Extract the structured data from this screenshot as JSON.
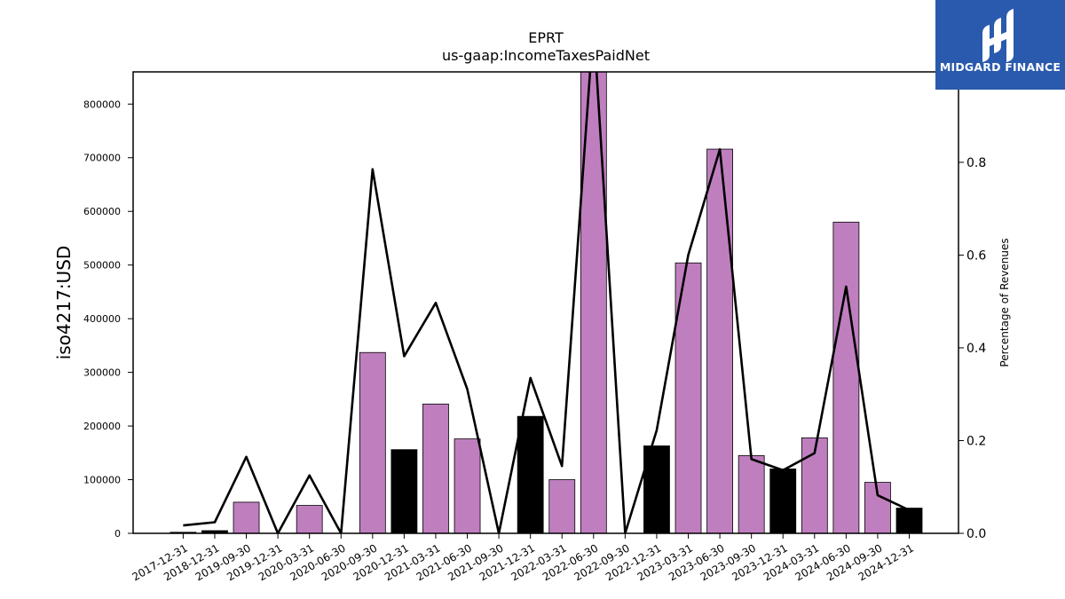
{
  "logo": {
    "text": "MIDGARD FINANCE",
    "bg": "#2a5aae"
  },
  "chart_data": {
    "type": "bar",
    "title": "EPRT",
    "subtitle": "us-gaap:IncomeTaxesPaidNet",
    "ylabel": "iso4217:USD",
    "y2label": "Percentage of Revenues",
    "ylim": [
      0,
      860000
    ],
    "y2lim": [
      0,
      0.995
    ],
    "yticks": [
      0,
      100000,
      200000,
      300000,
      400000,
      500000,
      600000,
      700000,
      800000
    ],
    "y2ticks": [
      0.0,
      0.2,
      0.4,
      0.6,
      0.8
    ],
    "categories": [
      "2017-12-31",
      "2018-12-31",
      "2019-09-30",
      "2019-12-31",
      "2020-03-31",
      "2020-06-30",
      "2020-09-30",
      "2020-12-31",
      "2021-03-31",
      "2021-06-30",
      "2021-09-30",
      "2021-12-31",
      "2022-03-31",
      "2022-06-30",
      "2022-09-30",
      "2022-12-31",
      "2023-03-31",
      "2023-06-30",
      "2023-09-30",
      "2023-12-31",
      "2024-03-31",
      "2024-06-30",
      "2024-09-30",
      "2024-12-31"
    ],
    "series": [
      {
        "type": "bar",
        "values": [
          2000,
          5000,
          58000,
          0,
          52000,
          0,
          337000,
          156000,
          241000,
          176000,
          0,
          218000,
          100000,
          870000,
          0,
          163000,
          504000,
          716000,
          145000,
          120000,
          178000,
          580000,
          95000,
          47000
        ],
        "colors": [
          "#000000",
          "#000000",
          "#bf7fbf",
          "#bf7fbf",
          "#bf7fbf",
          "#bf7fbf",
          "#bf7fbf",
          "#000000",
          "#bf7fbf",
          "#bf7fbf",
          "#bf7fbf",
          "#000000",
          "#bf7fbf",
          "#bf7fbf",
          "#bf7fbf",
          "#000000",
          "#bf7fbf",
          "#bf7fbf",
          "#bf7fbf",
          "#000000",
          "#bf7fbf",
          "#bf7fbf",
          "#bf7fbf",
          "#000000"
        ]
      },
      {
        "type": "line",
        "axis": "right",
        "color": "#000000",
        "values": [
          0.017,
          0.024,
          0.165,
          0.0,
          0.125,
          0.0,
          0.785,
          0.382,
          0.497,
          0.311,
          0.0,
          0.335,
          0.145,
          1.1,
          0.0,
          0.222,
          0.6,
          0.828,
          0.16,
          0.136,
          0.173,
          0.532,
          0.082,
          0.05
        ]
      }
    ]
  }
}
